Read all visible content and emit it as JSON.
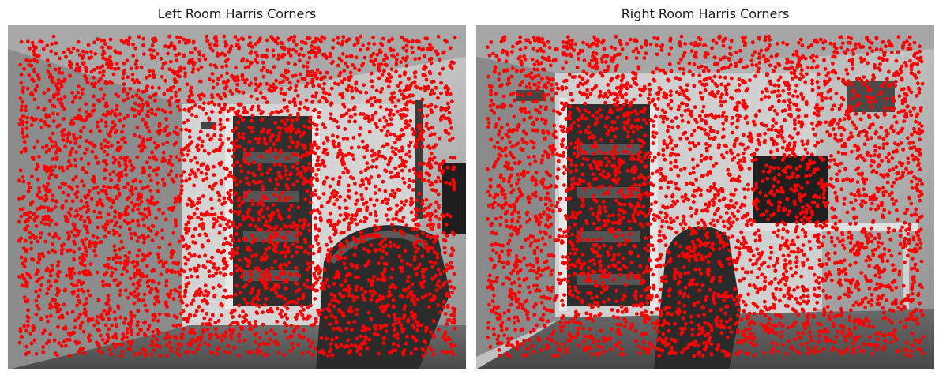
{
  "figure": {
    "panels": [
      {
        "title": "Left Room Harris Corners",
        "image_description": "grayscale room photo with red corner markers",
        "marker_color": "#ff0000"
      },
      {
        "title": "Right Room Harris Corners",
        "image_description": "grayscale room photo with red corner markers",
        "marker_color": "#ff0000"
      }
    ]
  }
}
